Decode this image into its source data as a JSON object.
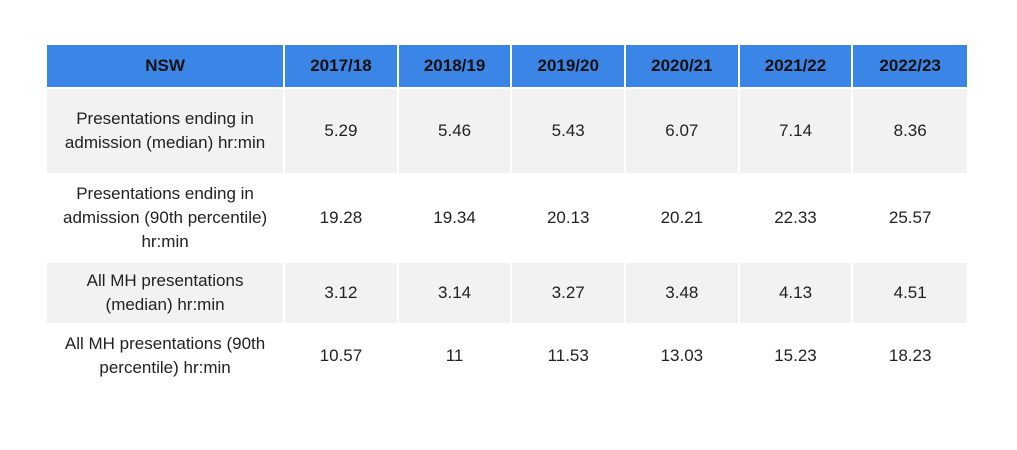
{
  "chart_data": {
    "type": "table",
    "columns": [
      "NSW",
      "2017/18",
      "2018/19",
      "2019/20",
      "2020/21",
      "2021/22",
      "2022/23"
    ],
    "rows": [
      {
        "label": "Presentations ending in admission (median) hr:min",
        "values": [
          "5.29",
          "5.46",
          "5.43",
          "6.07",
          "7.14",
          "8.36"
        ]
      },
      {
        "label": "Presentations ending in admission (90th percentile) hr:min",
        "values": [
          "19.28",
          "19.34",
          "20.13",
          "20.21",
          "22.33",
          "25.57"
        ]
      },
      {
        "label": "All MH presentations (median) hr:min",
        "values": [
          "3.12",
          "3.14",
          "3.27",
          "3.48",
          "4.13",
          "4.51"
        ]
      },
      {
        "label": "All MH presentations (90th percentile) hr:min",
        "values": [
          "10.57",
          "11",
          "11.53",
          "13.03",
          "15.23",
          "18.23"
        ]
      }
    ],
    "colors": {
      "header_bg": "#3b85e6",
      "shaded_row_bg": "#f2f2f2",
      "plain_row_bg": "#ffffff"
    }
  }
}
